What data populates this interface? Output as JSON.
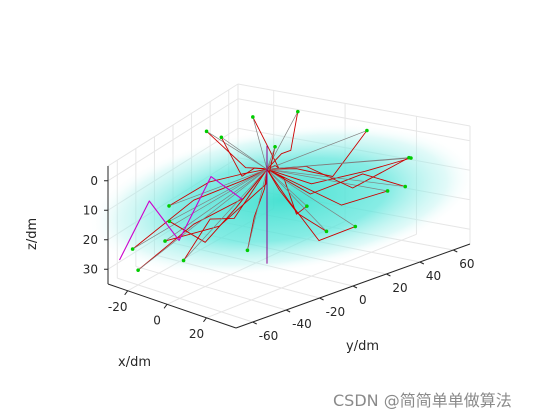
{
  "chart_data": {
    "type": "line",
    "view": "3d-perspective",
    "grid": true,
    "xlabel": "x/dm",
    "ylabel": "y/dm",
    "zlabel": "z/dm",
    "z_reversed": true,
    "xlim": [
      -30,
      35
    ],
    "ylim": [
      -70,
      70
    ],
    "zlim": [
      -5,
      35
    ],
    "x_ticks": [
      "-20",
      "0",
      "20"
    ],
    "y_ticks": [
      "-60",
      "-40",
      "-20",
      "0",
      "20",
      "40",
      "60"
    ],
    "z_ticks": [
      "0",
      "10",
      "20",
      "30"
    ],
    "colors": {
      "trajectories": "#cc0000",
      "start_markers": "#00cc00",
      "magenta_path": "#cc00cc",
      "hub_lines": "#808080",
      "surface": "#40e0d0",
      "grid": "#e6e6e6",
      "axes": "#262626"
    },
    "hub": {
      "x": 3,
      "y": 2,
      "z": 3
    },
    "series": [
      {
        "values": [
          [
            -25,
            -55,
            25
          ],
          [
            -10,
            -30,
            10
          ],
          [
            0,
            -10,
            5
          ],
          [
            3,
            2,
            3
          ]
        ]
      },
      {
        "values": [
          [
            -20,
            -60,
            30
          ],
          [
            -5,
            -40,
            15
          ],
          [
            5,
            -20,
            8
          ],
          [
            3,
            2,
            3
          ]
        ]
      },
      {
        "values": [
          [
            -15,
            -45,
            22
          ],
          [
            -2,
            -25,
            18
          ],
          [
            6,
            -5,
            6
          ],
          [
            3,
            2,
            3
          ]
        ]
      },
      {
        "values": [
          [
            25,
            -50,
            15
          ],
          [
            15,
            -30,
            10
          ],
          [
            8,
            -10,
            6
          ],
          [
            3,
            2,
            3
          ]
        ]
      },
      {
        "values": [
          [
            30,
            -20,
            5
          ],
          [
            20,
            -10,
            12
          ],
          [
            10,
            0,
            4
          ],
          [
            3,
            2,
            3
          ]
        ]
      },
      {
        "values": [
          [
            -28,
            -10,
            20
          ],
          [
            -15,
            -5,
            10
          ],
          [
            -5,
            0,
            6
          ],
          [
            3,
            2,
            3
          ]
        ]
      },
      {
        "values": [
          [
            -25,
            20,
            0
          ],
          [
            -10,
            15,
            8
          ],
          [
            0,
            5,
            4
          ],
          [
            3,
            2,
            3
          ]
        ]
      },
      {
        "values": [
          [
            -20,
            50,
            0
          ],
          [
            -5,
            30,
            10
          ],
          [
            0,
            15,
            5
          ],
          [
            3,
            2,
            3
          ]
        ]
      },
      {
        "values": [
          [
            10,
            60,
            0
          ],
          [
            8,
            40,
            12
          ],
          [
            5,
            20,
            6
          ],
          [
            3,
            2,
            3
          ]
        ]
      },
      {
        "values": [
          [
            25,
            55,
            5
          ],
          [
            18,
            40,
            8
          ],
          [
            10,
            20,
            10
          ],
          [
            3,
            2,
            3
          ]
        ]
      },
      {
        "values": [
          [
            30,
            30,
            10
          ],
          [
            20,
            20,
            15
          ],
          [
            10,
            10,
            8
          ],
          [
            3,
            2,
            3
          ]
        ]
      },
      {
        "values": [
          [
            -10,
            60,
            -2
          ],
          [
            -5,
            40,
            6
          ],
          [
            0,
            20,
            2
          ],
          [
            3,
            2,
            3
          ]
        ]
      },
      {
        "values": [
          [
            15,
            20,
            25
          ],
          [
            10,
            10,
            18
          ],
          [
            6,
            5,
            10
          ],
          [
            3,
            2,
            3
          ]
        ]
      },
      {
        "values": [
          [
            -5,
            -60,
            10
          ],
          [
            0,
            -40,
            20
          ],
          [
            2,
            -20,
            12
          ],
          [
            3,
            2,
            3
          ]
        ]
      },
      {
        "values": [
          [
            20,
            65,
            8
          ],
          [
            12,
            45,
            16
          ],
          [
            6,
            25,
            6
          ],
          [
            3,
            2,
            3
          ]
        ]
      },
      {
        "values": [
          [
            28,
            45,
            12
          ],
          [
            22,
            30,
            6
          ],
          [
            12,
            15,
            12
          ],
          [
            3,
            2,
            3
          ]
        ]
      },
      {
        "values": [
          [
            -25,
            35,
            5
          ],
          [
            -15,
            25,
            14
          ],
          [
            -5,
            10,
            6
          ],
          [
            3,
            2,
            3
          ]
        ]
      },
      {
        "values": [
          [
            5,
            -65,
            20
          ],
          [
            5,
            -45,
            10
          ],
          [
            4,
            -25,
            14
          ],
          [
            3,
            2,
            3
          ]
        ]
      },
      {
        "values": [
          [
            30,
            10,
            18
          ],
          [
            20,
            5,
            24
          ],
          [
            10,
            3,
            12
          ],
          [
            3,
            2,
            3
          ]
        ]
      },
      {
        "values": [
          [
            -15,
            55,
            10
          ],
          [
            -8,
            35,
            4
          ],
          [
            -2,
            15,
            8
          ],
          [
            3,
            2,
            3
          ]
        ]
      }
    ],
    "magenta_path": [
      [
        -28,
        -62,
        28
      ],
      [
        -22,
        -45,
        10
      ],
      [
        -16,
        -30,
        25
      ],
      [
        -10,
        -15,
        5
      ],
      [
        -4,
        -2,
        14
      ]
    ]
  },
  "watermark": "CSDN @简简单单做算法"
}
